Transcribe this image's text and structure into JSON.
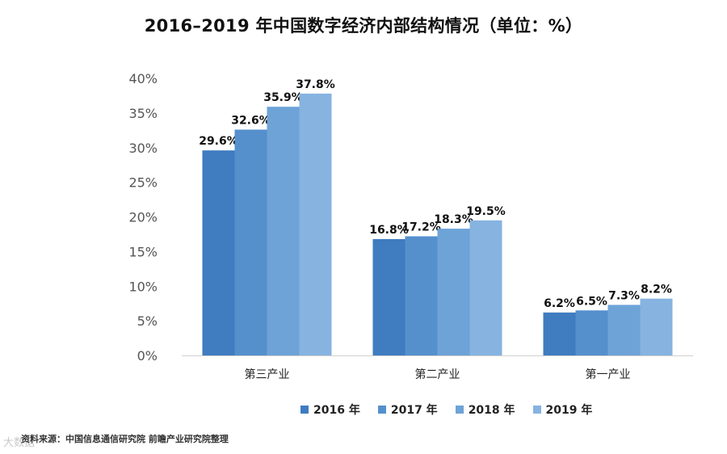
{
  "chart_data": {
    "type": "bar",
    "title": "2016–2019 年中国数字经济内部结构情况（单位：%）",
    "categories": [
      "第三产业",
      "第二产业",
      "第一产业"
    ],
    "series": [
      {
        "name": "2016 年",
        "color": "#3f7cc0",
        "values": [
          29.6,
          16.8,
          6.2
        ]
      },
      {
        "name": "2017 年",
        "color": "#5590cd",
        "values": [
          32.6,
          17.2,
          6.5
        ]
      },
      {
        "name": "2018 年",
        "color": "#6ea3d8",
        "values": [
          35.9,
          18.3,
          7.3
        ]
      },
      {
        "name": "2019 年",
        "color": "#86b3e0",
        "values": [
          37.8,
          19.5,
          8.2
        ]
      }
    ],
    "ylim": [
      0,
      40
    ],
    "yticks": [
      "0%",
      "5%",
      "10%",
      "15%",
      "20%",
      "25%",
      "30%",
      "35%",
      "40%"
    ],
    "value_labels": [
      [
        "29.6%",
        "16.8%",
        "6.2%"
      ],
      [
        "32.6%",
        "17.2%",
        "6.5%"
      ],
      [
        "35.9%",
        "18.3%",
        "7.3%"
      ],
      [
        "37.8%",
        "19.5%",
        "8.2%"
      ]
    ],
    "xlabel": "",
    "ylabel": "",
    "legend": "bottom",
    "grid": false
  },
  "footer": {
    "source": "资料来源：中国信息通信研究院  前瞻产业研究院整理",
    "watermark": "大数据"
  }
}
